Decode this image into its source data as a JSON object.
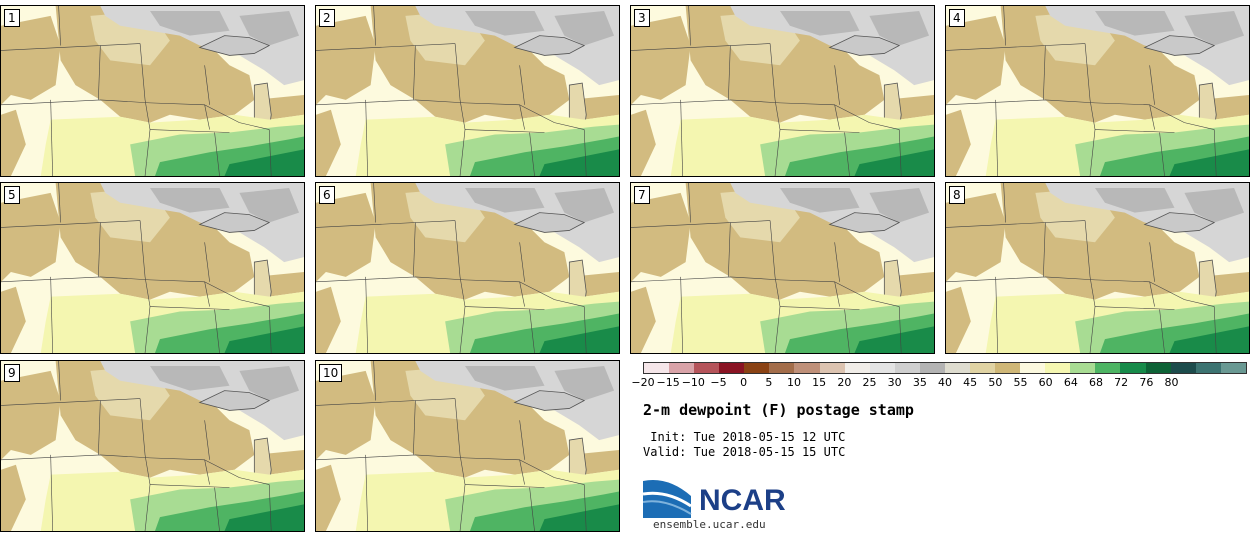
{
  "panels": [
    {
      "label": "1"
    },
    {
      "label": "2"
    },
    {
      "label": "3"
    },
    {
      "label": "4"
    },
    {
      "label": "5"
    },
    {
      "label": "6"
    },
    {
      "label": "7"
    },
    {
      "label": "8"
    },
    {
      "label": "9"
    },
    {
      "label": "10"
    }
  ],
  "colorbar": {
    "colors": [
      "#f5e6e9",
      "#d9a3a8",
      "#b5545a",
      "#8a1423",
      "#8a4214",
      "#a36d4a",
      "#bf9079",
      "#dcc3b0",
      "#f1ede8",
      "#e3e3e3",
      "#cfcfcf",
      "#b3b3b3",
      "#dedccf",
      "#e0d3a3",
      "#cfb777",
      "#fcf9df",
      "#f5f7b1",
      "#a8dc93",
      "#4db463",
      "#178b4a",
      "#0d6236",
      "#1d4c4c",
      "#3c7371",
      "#6a9993"
    ],
    "tick_labels": [
      "−20",
      "−15",
      "−10",
      "−5",
      "0",
      "5",
      "10",
      "15",
      "20",
      "25",
      "30",
      "35",
      "40",
      "45",
      "50",
      "55",
      "60",
      "64",
      "68",
      "72",
      "76",
      "80"
    ]
  },
  "map_colors": {
    "warm_green": "#198b49",
    "mid_green": "#4fb463",
    "light_green": "#a8dc93",
    "pale_yellow": "#f4f6b0",
    "cream": "#fdfade",
    "tan": "#d2bb80",
    "light_tan": "#e5d9ac",
    "light_gray": "#d6d6d6",
    "gray": "#b8b8b8",
    "lake": "#c9c9c9"
  },
  "title": "2-m dewpoint (F) postage stamp",
  "init": " Init: Tue 2018-05-15 12 UTC",
  "valid": "Valid: Tue 2018-05-15 15 UTC",
  "logo": {
    "text": "NCAR",
    "url": "ensemble.ucar.edu"
  }
}
